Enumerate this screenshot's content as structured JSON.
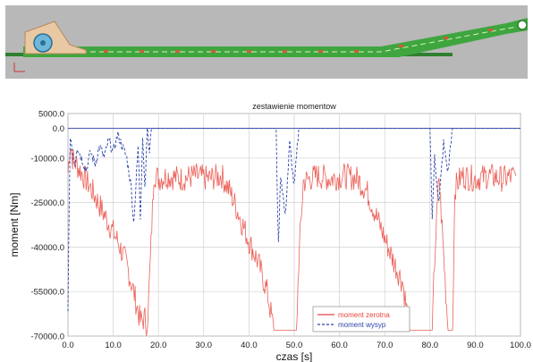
{
  "diagram": {
    "description_colors": {
      "background": "#b8b8b8",
      "belt": "#3fa63f",
      "rail": "#2f7f2f",
      "head": "#6fb7d9",
      "frame": "#e9c9a4",
      "marks": "#d05a3a"
    }
  },
  "chart_data": {
    "type": "line",
    "title": "zestawienie momentow",
    "xlabel": "czas [s]",
    "ylabel": "moment [Nm]",
    "xlim": [
      0,
      100
    ],
    "ylim": [
      -70000,
      5000
    ],
    "x_ticks": [
      "0.0",
      "10.0",
      "20.0",
      "30.0",
      "40.0",
      "50.0",
      "60.0",
      "70.0",
      "80.0",
      "90.0",
      "100.0"
    ],
    "y_ticks": [
      "5000.0",
      "0.0",
      "-10000.0",
      "-25000.0",
      "-40000.0",
      "-55000.0",
      "-70000.0"
    ],
    "grid": true,
    "legend_position": "bottom-right",
    "series": [
      {
        "name": "moment zerotna",
        "color": "#e8453c",
        "style": "solid",
        "x": [
          0,
          0.5,
          1,
          3,
          5,
          7,
          9,
          11,
          13,
          14.5,
          16,
          17,
          17.5,
          18.2,
          19,
          20,
          22,
          25,
          28,
          31,
          34,
          36,
          38,
          40,
          42,
          44,
          45.5,
          47,
          49,
          50.5,
          51,
          52,
          55,
          58,
          61,
          64,
          66,
          68,
          70,
          72,
          74,
          75.5,
          77,
          79,
          80.5,
          81,
          82,
          84,
          85,
          85.5,
          87,
          90,
          93,
          96,
          99
        ],
        "y": [
          -15000,
          -5000,
          -10000,
          -15000,
          -20000,
          -26000,
          -32000,
          -38000,
          -46000,
          -55000,
          -65000,
          -64000,
          -68000,
          -45000,
          -15000,
          -17000,
          -16000,
          -17000,
          -16000,
          -17000,
          -16000,
          -22000,
          -30000,
          -38000,
          -45000,
          -55000,
          -68000,
          -68000,
          -68000,
          -68000,
          -45000,
          -18000,
          -16000,
          -17000,
          -16000,
          -17000,
          -21000,
          -29000,
          -37000,
          -45000,
          -52000,
          -68000,
          -68000,
          -68000,
          -68000,
          -45000,
          -16000,
          -68000,
          -68000,
          -20000,
          -16000,
          -17000,
          -16000,
          -17000,
          -16000
        ]
      },
      {
        "name": "moment wysyp",
        "color": "#2c45a8",
        "style": "dashed",
        "x": [
          0,
          0.5,
          1,
          1.5,
          2,
          3,
          4,
          5,
          6,
          7,
          8,
          9,
          10,
          11,
          12,
          13,
          14,
          14.5,
          15,
          15.5,
          16,
          16.5,
          17,
          17.5,
          18,
          18.5,
          19,
          20,
          30,
          45,
          46,
          46.5,
          47,
          48,
          49,
          50,
          50.5,
          51,
          52,
          60,
          75,
          80,
          80.5,
          81,
          82,
          83,
          84,
          84.5,
          85,
          86,
          100
        ],
        "y": [
          -60000,
          -2000,
          -8000,
          -12000,
          -6000,
          -10000,
          -14000,
          -8000,
          -12000,
          -6000,
          -10000,
          -4000,
          -8000,
          -2000,
          -6000,
          -10000,
          -20000,
          -32000,
          -20000,
          -6000,
          -30000,
          -2000,
          -20000,
          0,
          -8000,
          0,
          0,
          0,
          0,
          0,
          0,
          -40000,
          -15000,
          -30000,
          -5000,
          -20000,
          -10000,
          0,
          0,
          0,
          0,
          0,
          -30000,
          -10000,
          -25000,
          -5000,
          -15000,
          -6000,
          0,
          0,
          0
        ]
      }
    ]
  }
}
